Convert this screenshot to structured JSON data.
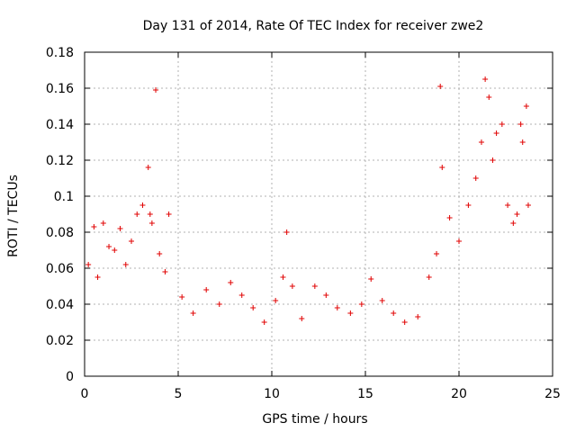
{
  "chart_data": {
    "type": "scatter",
    "title": "Day 131 of 2014, Rate Of TEC Index for receiver zwe2",
    "xlabel": "GPS time / hours",
    "ylabel": "ROTI / TECUs",
    "xlim": [
      0,
      25
    ],
    "ylim": [
      0,
      0.18
    ],
    "xticks": [
      "0",
      "5",
      "10",
      "15",
      "20",
      "25"
    ],
    "yticks": [
      "0",
      "0.02",
      "0.04",
      "0.06",
      "0.08",
      "0.1",
      "0.12",
      "0.14",
      "0.16",
      "0.18"
    ],
    "grid": true,
    "marker": "+",
    "color": "#e00000",
    "series": [
      {
        "name": "ROTI",
        "x": [
          0.2,
          0.5,
          0.7,
          1.0,
          1.3,
          1.6,
          1.9,
          2.2,
          2.5,
          2.8,
          3.1,
          3.4,
          3.5,
          3.6,
          3.8,
          4.0,
          4.3,
          4.5,
          5.2,
          5.8,
          6.5,
          7.2,
          7.8,
          8.4,
          9.0,
          9.6,
          10.2,
          10.6,
          10.8,
          11.1,
          11.6,
          12.3,
          12.9,
          13.5,
          14.2,
          14.8,
          15.3,
          15.9,
          16.5,
          17.1,
          17.8,
          18.4,
          18.8,
          19.0,
          19.1,
          19.5,
          20.0,
          20.5,
          20.9,
          21.2,
          21.4,
          21.6,
          21.8,
          22.0,
          22.3,
          22.6,
          22.9,
          23.1,
          23.3,
          23.4,
          23.6,
          23.7
        ],
        "y": [
          0.062,
          0.083,
          0.055,
          0.085,
          0.072,
          0.07,
          0.082,
          0.062,
          0.075,
          0.09,
          0.095,
          0.116,
          0.09,
          0.085,
          0.159,
          0.068,
          0.058,
          0.09,
          0.044,
          0.035,
          0.048,
          0.04,
          0.052,
          0.045,
          0.038,
          0.03,
          0.042,
          0.055,
          0.08,
          0.05,
          0.032,
          0.05,
          0.045,
          0.038,
          0.035,
          0.04,
          0.054,
          0.042,
          0.035,
          0.03,
          0.033,
          0.055,
          0.068,
          0.161,
          0.116,
          0.088,
          0.075,
          0.095,
          0.11,
          0.13,
          0.165,
          0.155,
          0.12,
          0.135,
          0.14,
          0.095,
          0.085,
          0.09,
          0.14,
          0.13,
          0.15,
          0.095
        ]
      }
    ]
  }
}
